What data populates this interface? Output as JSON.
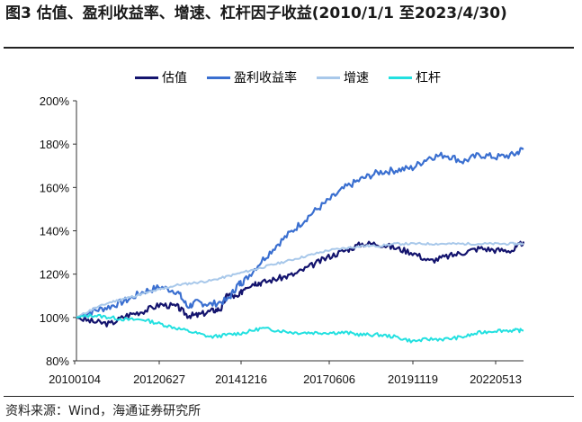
{
  "header": {
    "title": "图3 估值、盈利收益率、增速、杠杆因子收益(2010/1/1  至2023/4/30)"
  },
  "footer": {
    "source": "资料来源：Wind，海通证券研究所"
  },
  "chart_data": {
    "type": "line",
    "title": "",
    "xlabel": "",
    "ylabel": "",
    "x_tick_labels": [
      "20100104",
      "20120627",
      "20141216",
      "20170606",
      "20191119",
      "20220513"
    ],
    "y_tick_labels": [
      "80%",
      "100%",
      "120%",
      "140%",
      "160%",
      "180%",
      "200%"
    ],
    "y_ticks": [
      80,
      100,
      120,
      140,
      160,
      180,
      200
    ],
    "ylim": [
      80,
      200
    ],
    "x_range": [
      0,
      13.3
    ],
    "legend_position": "top",
    "grid": false,
    "series": [
      {
        "name": "估值",
        "color": "#14146e",
        "values": [
          [
            0,
            100
          ],
          [
            0.5,
            98
          ],
          [
            1,
            97
          ],
          [
            1.5,
            101
          ],
          [
            2,
            103
          ],
          [
            2.5,
            106
          ],
          [
            3,
            105
          ],
          [
            3.3,
            101
          ],
          [
            3.6,
            101
          ],
          [
            4,
            103
          ],
          [
            4.3,
            104
          ],
          [
            4.5,
            111
          ],
          [
            4.8,
            109
          ],
          [
            5,
            114
          ],
          [
            5.3,
            116
          ],
          [
            5.5,
            116
          ],
          [
            6,
            118
          ],
          [
            6.5,
            120
          ],
          [
            7,
            124
          ],
          [
            7.5,
            128
          ],
          [
            8,
            131
          ],
          [
            8.5,
            134
          ],
          [
            9,
            134
          ],
          [
            9.5,
            132
          ],
          [
            10,
            130
          ],
          [
            10.5,
            126
          ],
          [
            11,
            128
          ],
          [
            11.5,
            130
          ],
          [
            12,
            132
          ],
          [
            12.5,
            131
          ],
          [
            13,
            131
          ],
          [
            13.3,
            135
          ]
        ]
      },
      {
        "name": "盈利收益率",
        "color": "#3a6fd0",
        "values": [
          [
            0,
            100
          ],
          [
            0.5,
            103
          ],
          [
            1,
            105
          ],
          [
            1.5,
            108
          ],
          [
            2,
            112
          ],
          [
            2.5,
            114
          ],
          [
            3,
            112
          ],
          [
            3.3,
            105
          ],
          [
            3.6,
            107
          ],
          [
            4,
            106
          ],
          [
            4.5,
            108
          ],
          [
            4.8,
            115
          ],
          [
            5,
            117
          ],
          [
            5.5,
            126
          ],
          [
            6,
            134
          ],
          [
            6.5,
            141
          ],
          [
            7,
            148
          ],
          [
            7.5,
            154
          ],
          [
            8,
            160
          ],
          [
            8.5,
            164
          ],
          [
            9,
            167
          ],
          [
            9.5,
            168
          ],
          [
            10,
            169
          ],
          [
            10.5,
            174
          ],
          [
            11,
            175
          ],
          [
            11.5,
            172
          ],
          [
            12,
            175
          ],
          [
            12.5,
            174
          ],
          [
            13,
            175
          ],
          [
            13.3,
            178
          ]
        ]
      },
      {
        "name": "增速",
        "color": "#a8c8ea",
        "values": [
          [
            0,
            100
          ],
          [
            0.5,
            104
          ],
          [
            1,
            107
          ],
          [
            1.5,
            109
          ],
          [
            2,
            111
          ],
          [
            2.5,
            113
          ],
          [
            3,
            115
          ],
          [
            3.5,
            116
          ],
          [
            4,
            117
          ],
          [
            4.5,
            119
          ],
          [
            5,
            121
          ],
          [
            5.5,
            123
          ],
          [
            6,
            125
          ],
          [
            6.5,
            127
          ],
          [
            7,
            129
          ],
          [
            7.5,
            131
          ],
          [
            8,
            132
          ],
          [
            8.5,
            133
          ],
          [
            9,
            133
          ],
          [
            9.5,
            134
          ],
          [
            10,
            134
          ],
          [
            10.5,
            134
          ],
          [
            11,
            134
          ],
          [
            11.5,
            134
          ],
          [
            12,
            134
          ],
          [
            12.5,
            134
          ],
          [
            13,
            134
          ],
          [
            13.3,
            134
          ]
        ]
      },
      {
        "name": "杠杆",
        "color": "#22e0e0",
        "values": [
          [
            0,
            100
          ],
          [
            0.5,
            101
          ],
          [
            1,
            100
          ],
          [
            1.5,
            99
          ],
          [
            2,
            99
          ],
          [
            2.5,
            97
          ],
          [
            3,
            95
          ],
          [
            3.5,
            93
          ],
          [
            4,
            91
          ],
          [
            4.5,
            92
          ],
          [
            5,
            93
          ],
          [
            5.5,
            95
          ],
          [
            6,
            94
          ],
          [
            6.5,
            93
          ],
          [
            7,
            93
          ],
          [
            7.5,
            93
          ],
          [
            8,
            93
          ],
          [
            8.5,
            92
          ],
          [
            9,
            92
          ],
          [
            9.5,
            91
          ],
          [
            10,
            89
          ],
          [
            10.5,
            90
          ],
          [
            11,
            90
          ],
          [
            11.5,
            91
          ],
          [
            12,
            93
          ],
          [
            12.5,
            94
          ],
          [
            13,
            94
          ],
          [
            13.3,
            94
          ]
        ]
      }
    ]
  }
}
